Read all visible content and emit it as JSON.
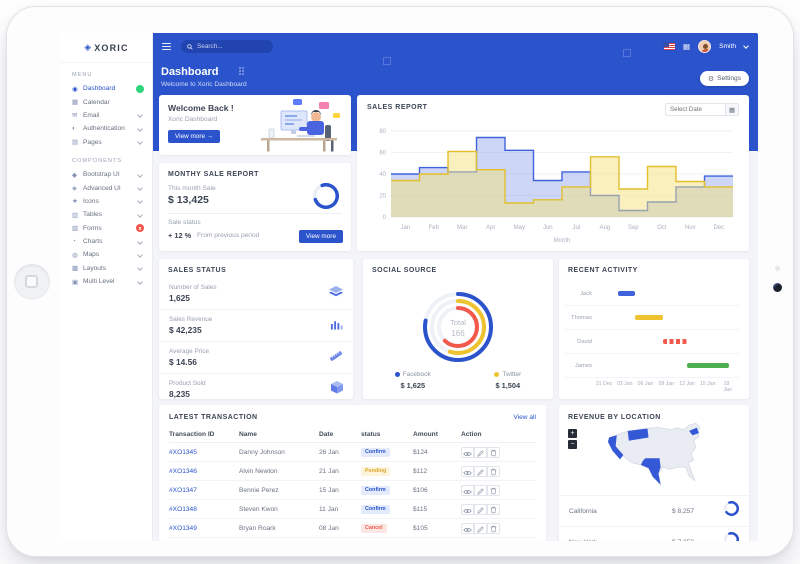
{
  "brand": {
    "name": "XORIC"
  },
  "topbar": {
    "search_placeholder": "Search...",
    "user_name": "Smith"
  },
  "header": {
    "title": "Dashboard",
    "subtitle": "Welcome to Xoric Dashboard",
    "settings_label": "Settings"
  },
  "sidebar": {
    "sections": [
      {
        "title": "MENU",
        "items": [
          {
            "label": "Dashboard",
            "icon": "dashboard-icon",
            "active": true,
            "badge": {
              "text": "",
              "color": "#2ed47a"
            }
          },
          {
            "label": "Calendar",
            "icon": "calendar-icon"
          },
          {
            "label": "Email",
            "icon": "email-icon",
            "chevron": true
          },
          {
            "label": "Authentication",
            "icon": "authentication-icon",
            "chevron": true
          },
          {
            "label": "Pages",
            "icon": "pages-icon",
            "chevron": true
          }
        ]
      },
      {
        "title": "COMPONENTS",
        "items": [
          {
            "label": "Bootstrap UI",
            "icon": "bootstrap-ui-icon",
            "chevron": true
          },
          {
            "label": "Advanced UI",
            "icon": "advanced-ui-icon",
            "chevron": true
          },
          {
            "label": "Icons",
            "icon": "icons-icon",
            "chevron": true
          },
          {
            "label": "Tables",
            "icon": "tables-icon",
            "chevron": true
          },
          {
            "label": "Forms",
            "icon": "forms-icon",
            "badge": {
              "text": "8",
              "color": "#f0564a"
            }
          },
          {
            "label": "Charts",
            "icon": "charts-icon",
            "chevron": true
          },
          {
            "label": "Maps",
            "icon": "maps-icon",
            "chevron": true
          },
          {
            "label": "Layouts",
            "icon": "layouts-icon",
            "chevron": true
          },
          {
            "label": "Multi Level",
            "icon": "multi-level-icon",
            "chevron": true
          }
        ]
      }
    ]
  },
  "welcome": {
    "title": "Welcome Back !",
    "subtitle": "Xoric Dashboard",
    "button_label": "View more",
    "button_arrow": "→"
  },
  "monthly": {
    "title": "MONTHY SALE REPORT",
    "this_month_label": "This month Sale",
    "this_month_value": "$ 13,425",
    "progress_percent": 75,
    "sale_status_label": "Sale status",
    "delta": "+ 12 %",
    "delta_note": "From previous period",
    "button_label": "View more"
  },
  "sales_report": {
    "title": "SALES REPORT",
    "date_placeholder": "Select Date",
    "chart": {
      "type": "step-area",
      "x": [
        "Jan",
        "Feb",
        "Mar",
        "Apr",
        "May",
        "Jun",
        "Jul",
        "Aug",
        "Sep",
        "Oct",
        "Nov",
        "Dec"
      ],
      "xlabel": "Month",
      "ylim": [
        0,
        80
      ],
      "yticks": [
        0,
        20,
        40,
        60,
        80
      ],
      "series": [
        {
          "name": "blue",
          "color": "#3f63dd",
          "fill": "rgba(124,147,232,0.38)",
          "values": [
            40,
            46,
            42,
            74,
            62,
            34,
            42,
            20,
            6,
            14,
            28,
            38
          ]
        },
        {
          "name": "yellow",
          "color": "#e3bf2c",
          "fill": "rgba(243,225,125,0.5)",
          "values": [
            34,
            40,
            61,
            44,
            13,
            16,
            28,
            56,
            26,
            47,
            33,
            28
          ]
        }
      ]
    }
  },
  "sales_status": {
    "title": "SALES STATUS",
    "items": [
      {
        "label": "Number of Sales",
        "value": "1,625",
        "icon": "layers-icon"
      },
      {
        "label": "Sales Revenue",
        "value": "$ 42,235",
        "icon": "bar-chart-icon"
      },
      {
        "label": "Average Price",
        "value": "$ 14.56",
        "icon": "ruler-icon"
      },
      {
        "label": "Product Sold",
        "value": "8,235",
        "icon": "cube-icon"
      }
    ]
  },
  "social": {
    "title": "SOCIAL SOURCE",
    "total_label": "Total",
    "total_value": "166",
    "rings": [
      {
        "name": "facebook",
        "color": "#2a53cc",
        "percent": 78
      },
      {
        "name": "twitter",
        "color": "#eec32f",
        "percent": 55
      },
      {
        "name": "other",
        "color": "#f2594b",
        "percent": 62
      }
    ],
    "legend": [
      {
        "label": "Facebook",
        "value": "$ 1,625",
        "color": "#2a53cc"
      },
      {
        "label": "Twitter",
        "value": "$ 1,504",
        "color": "#eec32f"
      }
    ]
  },
  "activity": {
    "title": "RECENT ACTIVITY",
    "chart": {
      "type": "timeline-bar",
      "axis_ticks": [
        "31 Dec",
        "03 Jan",
        "06 Jan",
        "09 Jan",
        "12 Jan",
        "15 Jan",
        "18 Jan"
      ],
      "tick_days": [
        0,
        3,
        6,
        9,
        12,
        15,
        18
      ],
      "axis_range": [
        -1,
        19.5
      ],
      "rows": [
        {
          "name": "Jack",
          "start": 2,
          "end": 4.5,
          "color": "#3f63dd",
          "style": "solid"
        },
        {
          "name": "Thomas",
          "start": 4.5,
          "end": 8.5,
          "color": "#eec32f",
          "style": "solid"
        },
        {
          "name": "David",
          "start": 8.5,
          "end": 12,
          "color": "#f2594b",
          "style": "dashed"
        },
        {
          "name": "James",
          "start": 12,
          "end": 18,
          "color": "#4caf50",
          "style": "solid"
        }
      ]
    }
  },
  "transactions": {
    "title": "LATEST TRANSACTION",
    "view_all": "View all",
    "columns": [
      "Transaction ID",
      "Name",
      "Date",
      "status",
      "Amount",
      "Action"
    ],
    "rows": [
      {
        "id": "#XO1345",
        "name": "Danny Johnson",
        "date": "26 Jan",
        "status": "Confirm",
        "amount": "$124"
      },
      {
        "id": "#XO1346",
        "name": "Alvin Newton",
        "date": "21 Jan",
        "status": "Pending",
        "amount": "$112"
      },
      {
        "id": "#XO1347",
        "name": "Bennie Perez",
        "date": "15 Jan",
        "status": "Confirm",
        "amount": "$106"
      },
      {
        "id": "#XO1348",
        "name": "Steven Kwon",
        "date": "11 Jan",
        "status": "Confirm",
        "amount": "$115"
      },
      {
        "id": "#XO1349",
        "name": "Bryan Roark",
        "date": "08 Jan",
        "status": "Cancel",
        "amount": "$105"
      }
    ],
    "status_colors": {
      "Confirm": {
        "bg": "#e2eafb",
        "text": "#2a53cc"
      },
      "Pending": {
        "bg": "#fdf4dc",
        "text": "#dfa72e"
      },
      "Cancel": {
        "bg": "#fde7e4",
        "text": "#f0594c"
      }
    }
  },
  "revenue": {
    "title": "REVENUE BY LOCATION",
    "zoom_in": "+",
    "zoom_out": "−",
    "locations": [
      {
        "name": "California",
        "value": "$ 8,257",
        "progress": 70
      },
      {
        "name": "New York",
        "value": "$ 7,253",
        "progress": 72
      }
    ]
  }
}
